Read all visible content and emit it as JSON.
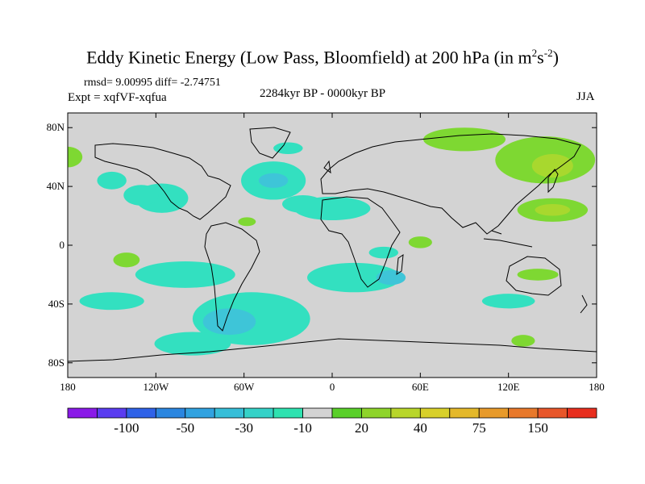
{
  "title_main": "Eddy Kinetic Energy (Low Pass, Bloomfield) at 200 hPa (in m",
  "title_sup1": "2",
  "title_mid": "s",
  "title_sup2": "-2",
  "title_end": ")",
  "stats_line": "rmsd= 9.00995 diff= -2.74751",
  "expt_line": "Expt = xqfVF-xqfua",
  "period_line": "2284kyr BP - 0000kyr BP",
  "season": "JJA",
  "colors": {
    "neutral": "#d3d3d3",
    "neg_light": "#33e0c0",
    "neg_mid": "#3ec5d8",
    "pos_light": "#7ed832",
    "pos_mid": "#a8d82e"
  },
  "chart_data": {
    "type": "heatmap",
    "projection": "cylindrical-equidistant",
    "xlim": [
      -180,
      180
    ],
    "ylim": [
      -90,
      90
    ],
    "x_ticks": [
      {
        "value": -180,
        "label": "180"
      },
      {
        "value": -120,
        "label": "120W"
      },
      {
        "value": -60,
        "label": "60W"
      },
      {
        "value": 0,
        "label": "0"
      },
      {
        "value": 60,
        "label": "60E"
      },
      {
        "value": 120,
        "label": "120E"
      },
      {
        "value": 180,
        "label": "180"
      }
    ],
    "y_ticks": [
      {
        "value": 80,
        "label": "80N"
      },
      {
        "value": 40,
        "label": "40N"
      },
      {
        "value": 0,
        "label": "0"
      },
      {
        "value": -40,
        "label": "40S"
      },
      {
        "value": -80,
        "label": "80S"
      }
    ],
    "colorbar": {
      "colors": [
        "#8a1ae8",
        "#5a3cf0",
        "#2f62e8",
        "#2b86e0",
        "#31a2e0",
        "#36bed8",
        "#35d2c8",
        "#2fe2b0",
        "#d3d3d3",
        "#5ad02a",
        "#8ed42a",
        "#b8d62a",
        "#d8d02a",
        "#e4b82a",
        "#e89a2a",
        "#e8782a",
        "#e8562a",
        "#e82e1e"
      ],
      "labels": [
        {
          "after_box": 2,
          "text": "-100"
        },
        {
          "after_box": 4,
          "text": "-50"
        },
        {
          "after_box": 6,
          "text": "-30"
        },
        {
          "after_box": 8,
          "text": "-10"
        },
        {
          "after_box": 10,
          "text": "20"
        },
        {
          "after_box": 12,
          "text": "40"
        },
        {
          "after_box": 14,
          "text": "75"
        },
        {
          "after_box": 16,
          "text": "150"
        }
      ]
    },
    "regions": [
      {
        "cls": "neg_light",
        "lon": -116,
        "lat": 32,
        "rx": 18,
        "ry": 10
      },
      {
        "cls": "neg_light",
        "lon": -130,
        "lat": 34,
        "rx": 12,
        "ry": 7
      },
      {
        "cls": "neg_light",
        "lon": -150,
        "lat": 44,
        "rx": 10,
        "ry": 6
      },
      {
        "cls": "neg_light",
        "lon": -40,
        "lat": 44,
        "rx": 22,
        "ry": 13
      },
      {
        "cls": "neg_mid",
        "lon": -40,
        "lat": 44,
        "rx": 10,
        "ry": 5
      },
      {
        "cls": "neg_light",
        "lon": -30,
        "lat": 66,
        "rx": 10,
        "ry": 4
      },
      {
        "cls": "neg_light",
        "lon": 0,
        "lat": 25,
        "rx": 26,
        "ry": 8
      },
      {
        "cls": "neg_light",
        "lon": -20,
        "lat": 28,
        "rx": 14,
        "ry": 6
      },
      {
        "cls": "neg_light",
        "lon": -100,
        "lat": -20,
        "rx": 34,
        "ry": 9
      },
      {
        "cls": "neg_light",
        "lon": 15,
        "lat": -22,
        "rx": 32,
        "ry": 10
      },
      {
        "cls": "neg_mid",
        "lon": 40,
        "lat": -22,
        "rx": 10,
        "ry": 5
      },
      {
        "cls": "neg_light",
        "lon": -150,
        "lat": -38,
        "rx": 22,
        "ry": 6
      },
      {
        "cls": "neg_light",
        "lon": -55,
        "lat": -50,
        "rx": 40,
        "ry": 18
      },
      {
        "cls": "neg_mid",
        "lon": -70,
        "lat": -52,
        "rx": 18,
        "ry": 9
      },
      {
        "cls": "neg_light",
        "lon": -95,
        "lat": -67,
        "rx": 26,
        "ry": 8
      },
      {
        "cls": "neg_light",
        "lon": 120,
        "lat": -38,
        "rx": 18,
        "ry": 5
      },
      {
        "cls": "neg_light",
        "lon": 35,
        "lat": -5,
        "rx": 10,
        "ry": 4
      },
      {
        "cls": "pos_light",
        "lon": 90,
        "lat": 72,
        "rx": 28,
        "ry": 8
      },
      {
        "cls": "pos_light",
        "lon": 145,
        "lat": 58,
        "rx": 34,
        "ry": 16
      },
      {
        "cls": "pos_mid",
        "lon": 150,
        "lat": 54,
        "rx": 14,
        "ry": 8
      },
      {
        "cls": "pos_light",
        "lon": 150,
        "lat": 24,
        "rx": 24,
        "ry": 8
      },
      {
        "cls": "pos_mid",
        "lon": 150,
        "lat": 24,
        "rx": 12,
        "ry": 4
      },
      {
        "cls": "pos_light",
        "lon": -180,
        "lat": 60,
        "rx": 10,
        "ry": 7
      },
      {
        "cls": "pos_light",
        "lon": -140,
        "lat": -10,
        "rx": 9,
        "ry": 5
      },
      {
        "cls": "pos_light",
        "lon": 60,
        "lat": 2,
        "rx": 8,
        "ry": 4
      },
      {
        "cls": "pos_light",
        "lon": -58,
        "lat": 16,
        "rx": 6,
        "ry": 3
      },
      {
        "cls": "pos_light",
        "lon": 130,
        "lat": -65,
        "rx": 8,
        "ry": 4
      },
      {
        "cls": "pos_light",
        "lon": 140,
        "lat": -20,
        "rx": 14,
        "ry": 4
      }
    ]
  }
}
